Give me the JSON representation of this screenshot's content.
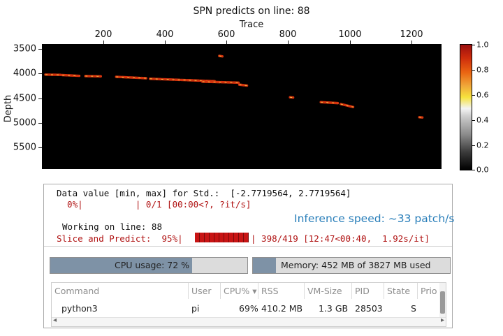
{
  "plot": {
    "title": "SPN predicts on line: 88",
    "x_label": "Trace",
    "y_label": "Depth",
    "x_ticks": [
      "200",
      "400",
      "600",
      "800",
      "1000",
      "1200"
    ],
    "y_ticks": [
      "3500",
      "4000",
      "4500",
      "5000",
      "5500"
    ],
    "colorbar_ticks": [
      "1.0",
      "0.8",
      "0.6",
      "0.4",
      "0.2",
      "0.0"
    ]
  },
  "chart_data": {
    "type": "heatmap",
    "title": "SPN predicts on line: 88",
    "xlabel": "Trace",
    "ylabel": "Depth",
    "xlim": [
      0,
      1300
    ],
    "ylim": [
      5950,
      3400
    ],
    "colorbar_range": [
      0.0,
      1.0
    ],
    "segments": [
      {
        "x": [
          10,
          60
        ],
        "y": [
          4015,
          4020
        ]
      },
      {
        "x": [
          65,
          120
        ],
        "y": [
          4025,
          4040
        ]
      },
      {
        "x": [
          140,
          190
        ],
        "y": [
          4045,
          4050
        ]
      },
      {
        "x": [
          240,
          340
        ],
        "y": [
          4060,
          4090
        ]
      },
      {
        "x": [
          350,
          560
        ],
        "y": [
          4100,
          4150
        ]
      },
      {
        "x": [
          520,
          640
        ],
        "y": [
          4160,
          4180
        ]
      },
      {
        "x": [
          640,
          665
        ],
        "y": [
          4220,
          4240
        ]
      },
      {
        "x": [
          575,
          585
        ],
        "y": [
          3630,
          3640
        ]
      },
      {
        "x": [
          805,
          815
        ],
        "y": [
          4480,
          4485
        ]
      },
      {
        "x": [
          905,
          960
        ],
        "y": [
          4580,
          4600
        ]
      },
      {
        "x": [
          970,
          1010
        ],
        "y": [
          4620,
          4680
        ]
      },
      {
        "x": [
          1225,
          1235
        ],
        "y": [
          4890,
          4895
        ]
      }
    ]
  },
  "terminal": {
    "line1": "Data value [min, max] for Std.:  [-2.7719564, 2.7719564]",
    "line2": "  0%|          | 0/1 [00:00<?, ?it/s]",
    "line3": "Working on line: 88",
    "slice_prefix": "Slice and Predict:  95%|",
    "slice_suffix": "| 398/419 [12:47<00:40,  1.92s/it]",
    "slice_progress": 0.95,
    "inference": "Inference speed: ~33 patch/s"
  },
  "cpu": {
    "label": "CPU usage: 72 %",
    "value": 0.72
  },
  "memory": {
    "label": "Memory: 452 MB of 3827 MB used",
    "value": 0.118
  },
  "process_table": {
    "headers": [
      "Command",
      "User",
      "CPU%",
      "RSS",
      "VM-Size",
      "PID",
      "State",
      "Prio"
    ],
    "sort_indicator": "▾",
    "row": [
      "python3",
      "pi",
      "69%",
      "410.2 MB",
      "1.3 GB",
      "28503",
      "S",
      ""
    ],
    "scroll_left_arrow": "◂",
    "scroll_right_arrow": "▸"
  },
  "colors": {
    "accent_blue": "#2a7fba",
    "progress_red": "#c81414",
    "meter_fill": "#7e92a6"
  }
}
